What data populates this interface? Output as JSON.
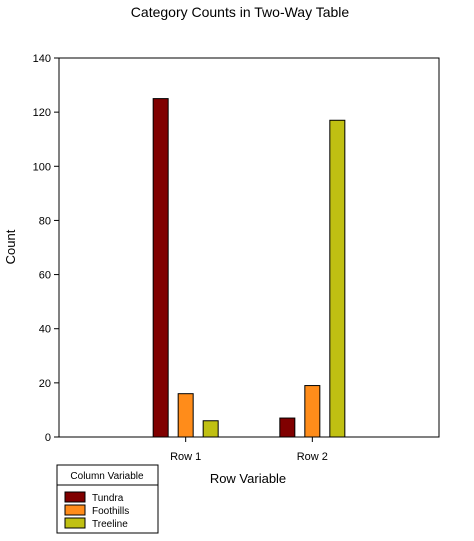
{
  "chart_data": {
    "type": "bar",
    "title": "Category Counts in Two-Way Table",
    "xlabel": "Row Variable",
    "ylabel": "Count",
    "categories": [
      "Row 1",
      "Row 2"
    ],
    "ylim": [
      0,
      140
    ],
    "yticks": [
      0,
      20,
      40,
      60,
      80,
      100,
      120,
      140
    ],
    "grid": false,
    "legend_title": "Column Variable",
    "legend_position": "bottom-left",
    "series": [
      {
        "name": "Tundra",
        "color": "#800000",
        "values": [
          125,
          7
        ]
      },
      {
        "name": "Foothills",
        "color": "#ff8c1a",
        "values": [
          16,
          19
        ]
      },
      {
        "name": "Treeline",
        "color": "#c0c012",
        "values": [
          6,
          117
        ]
      }
    ]
  }
}
